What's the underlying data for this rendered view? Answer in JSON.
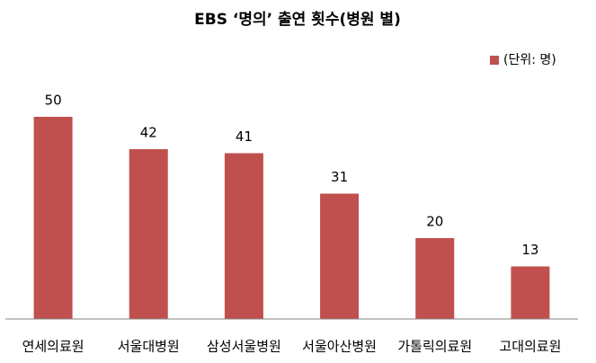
{
  "chart_data": {
    "type": "bar",
    "title": "EBS ‘명의’ 출연 횟수(병원 별)",
    "categories": [
      "연세의료원",
      "서울대병원",
      "삼성서울병원",
      "서울아산병원",
      "가톨릭의료원",
      "고대의료원"
    ],
    "series": [
      {
        "name": "(단위: 명)",
        "color": "#c0504d",
        "values": [
          50,
          42,
          41,
          31,
          20,
          13
        ]
      }
    ],
    "ylim": [
      0,
      60
    ],
    "legend": "top-right"
  }
}
